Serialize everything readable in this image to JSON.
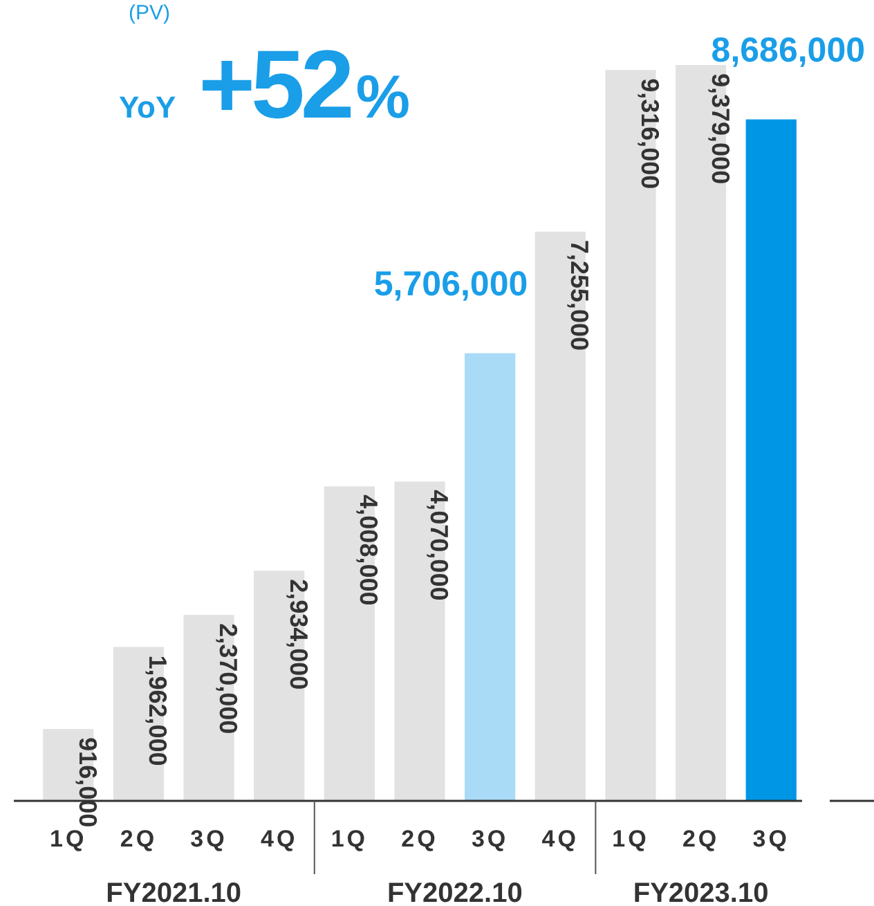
{
  "chart_data": {
    "type": "bar",
    "categories": [
      "1Q",
      "2Q",
      "3Q",
      "4Q",
      "1Q",
      "2Q",
      "3Q",
      "4Q",
      "1Q",
      "2Q",
      "3Q"
    ],
    "values": [
      916000,
      1962000,
      2370000,
      2934000,
      4008000,
      4070000,
      5706000,
      7255000,
      9316000,
      9379000,
      8686000
    ],
    "value_labels": [
      "916,000",
      "1,962,000",
      "2,370,000",
      "2,934,000",
      "4,008,000",
      "4,070,000",
      "5,706,000",
      "7,255,000",
      "9,316,000",
      "9,379,000",
      "8,686,000"
    ],
    "colors": [
      "#e2e2e2",
      "#e2e2e2",
      "#e2e2e2",
      "#e2e2e2",
      "#e2e2e2",
      "#e2e2e2",
      "#a9dbf6",
      "#e2e2e2",
      "#e2e2e2",
      "#e2e2e2",
      "#0096e6"
    ],
    "ylim": [
      0,
      9379000
    ],
    "annotations": [
      "(PV)",
      "YoY +52%",
      "FY2021.10",
      "FY2022.10",
      "FY2023.10"
    ]
  }
}
